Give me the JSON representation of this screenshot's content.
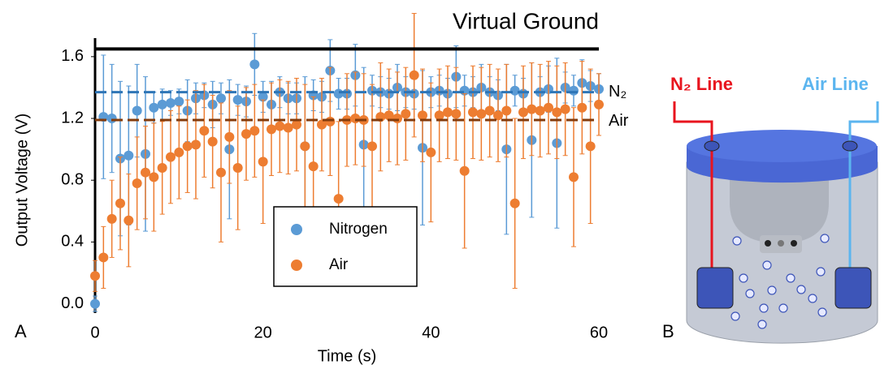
{
  "chart_data": {
    "type": "scatter",
    "panel_label": "A",
    "xlabel": "Time (s)",
    "ylabel": "Output Voltage (V)",
    "x": [
      0,
      1,
      2,
      3,
      4,
      5,
      6,
      7,
      8,
      9,
      10,
      11,
      12,
      13,
      14,
      15,
      16,
      17,
      18,
      19,
      20,
      21,
      22,
      23,
      24,
      25,
      26,
      27,
      28,
      29,
      30,
      31,
      32,
      33,
      34,
      35,
      36,
      37,
      38,
      39,
      40,
      41,
      42,
      43,
      44,
      45,
      46,
      47,
      48,
      49,
      50,
      51,
      52,
      53,
      54,
      55,
      56,
      57,
      58,
      59,
      60
    ],
    "series": [
      {
        "name": "Nitrogen",
        "color": "#5b9bd5",
        "values": [
          0,
          1.21,
          1.2,
          0.94,
          0.96,
          1.25,
          0.97,
          1.27,
          1.29,
          1.3,
          1.31,
          1.25,
          1.33,
          1.35,
          1.29,
          1.33,
          1.0,
          1.32,
          1.31,
          1.55,
          1.34,
          1.29,
          1.37,
          1.33,
          1.33,
          1.02,
          1.35,
          1.34,
          1.51,
          1.36,
          1.36,
          1.48,
          1.03,
          1.38,
          1.37,
          1.36,
          1.4,
          1.37,
          1.36,
          1.01,
          1.37,
          1.38,
          1.36,
          1.47,
          1.38,
          1.37,
          1.4,
          1.37,
          1.35,
          1.0,
          1.38,
          1.36,
          1.06,
          1.37,
          1.39,
          1.04,
          1.4,
          1.38,
          1.43,
          1.41,
          1.39
        ],
        "errors": [
          0.05,
          0.4,
          0.35,
          0.5,
          0.45,
          0.3,
          0.5,
          0.1,
          0.1,
          0.08,
          0.08,
          0.2,
          0.1,
          0.08,
          0.15,
          0.1,
          0.45,
          0.1,
          0.1,
          0.2,
          0.1,
          0.15,
          0.1,
          0.1,
          0.1,
          0.45,
          0.1,
          0.1,
          0.2,
          0.1,
          0.1,
          0.2,
          0.5,
          0.1,
          0.1,
          0.1,
          0.15,
          0.1,
          0.1,
          0.5,
          0.1,
          0.1,
          0.1,
          0.2,
          0.1,
          0.1,
          0.15,
          0.1,
          0.1,
          0.55,
          0.1,
          0.1,
          0.5,
          0.1,
          0.15,
          0.55,
          0.1,
          0.1,
          0.15,
          0.1,
          0.1
        ]
      },
      {
        "name": "Air",
        "color": "#ed7d31",
        "values": [
          0.18,
          0.3,
          0.55,
          0.65,
          0.54,
          0.78,
          0.85,
          0.82,
          0.88,
          0.95,
          0.98,
          1.02,
          1.03,
          1.12,
          1.05,
          0.85,
          1.08,
          0.88,
          1.1,
          1.12,
          0.92,
          1.13,
          1.15,
          1.14,
          1.16,
          1.02,
          0.89,
          1.16,
          1.18,
          0.68,
          1.19,
          1.2,
          1.19,
          1.02,
          1.21,
          1.22,
          1.2,
          1.23,
          1.48,
          1.22,
          0.98,
          1.22,
          1.24,
          1.23,
          0.86,
          1.24,
          1.23,
          1.25,
          1.22,
          1.25,
          0.65,
          1.24,
          1.26,
          1.25,
          1.27,
          1.24,
          1.26,
          0.82,
          1.27,
          1.02,
          1.29
        ],
        "errors": [
          0.1,
          0.2,
          0.25,
          0.3,
          0.3,
          0.3,
          0.3,
          0.35,
          0.3,
          0.3,
          0.3,
          0.3,
          0.35,
          0.3,
          0.3,
          0.45,
          0.3,
          0.4,
          0.3,
          0.3,
          0.4,
          0.3,
          0.3,
          0.3,
          0.3,
          0.4,
          0.45,
          0.3,
          0.35,
          0.5,
          0.3,
          0.3,
          0.3,
          0.4,
          0.35,
          0.3,
          0.3,
          0.3,
          0.4,
          0.3,
          0.45,
          0.3,
          0.3,
          0.3,
          0.5,
          0.3,
          0.3,
          0.3,
          0.3,
          0.3,
          0.55,
          0.3,
          0.3,
          0.3,
          0.3,
          0.3,
          0.3,
          0.45,
          0.3,
          0.5,
          0.2
        ]
      }
    ],
    "reference_lines": [
      {
        "label": "Virtual Ground",
        "value": 1.65,
        "color": "#000000",
        "style": "solid"
      },
      {
        "label": "N₂",
        "value": 1.37,
        "color": "#2e75b6",
        "style": "dashed"
      },
      {
        "label": "Air",
        "value": 1.19,
        "color": "#843c0c",
        "style": "dashed"
      }
    ],
    "xlim": [
      0,
      60
    ],
    "xticks": [
      0,
      20,
      40,
      60
    ],
    "ylim": [
      -0.06,
      1.72
    ],
    "yticks": [
      {
        "value": 0,
        "label": "0.0"
      },
      0.4,
      0.8,
      1.2,
      1.6
    ],
    "legend": "center"
  },
  "diagram": {
    "panel_label": "B",
    "labels": [
      "N₂ Line",
      "Air Line"
    ]
  }
}
